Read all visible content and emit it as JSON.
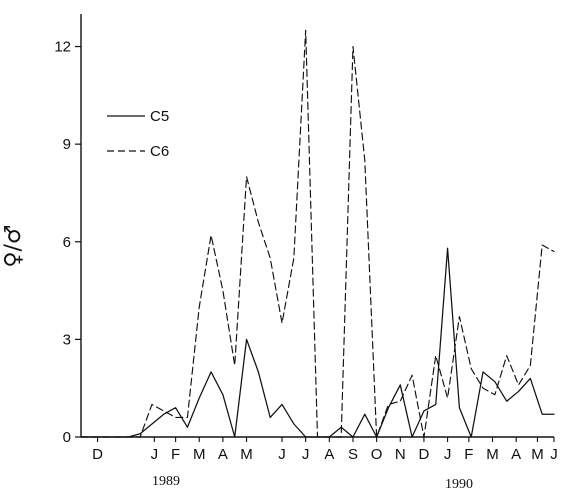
{
  "chart_data": {
    "type": "line",
    "title": "",
    "xlabel": "",
    "ylabel": "♀/♂",
    "ylim": [
      0,
      13
    ],
    "yticks": [
      "0",
      "3",
      "6",
      "9",
      "12"
    ],
    "month_labels": [
      "D",
      "J",
      "F",
      "M",
      "A",
      "M",
      "J",
      "J",
      "A",
      "S",
      "O",
      "N",
      "D",
      "J",
      "F",
      "M",
      "A",
      "M",
      "J"
    ],
    "year_labels": [
      "1989",
      "1990"
    ],
    "legend_position": "upper-left",
    "grid": false,
    "x": [
      0,
      1,
      2,
      3,
      4,
      5,
      6,
      7,
      8,
      9,
      10,
      11,
      12,
      13,
      14,
      15,
      16,
      17,
      18,
      19,
      20,
      21,
      22,
      23,
      24,
      25,
      26,
      27,
      28,
      29,
      30,
      31,
      32,
      33,
      34,
      35,
      36,
      37,
      38,
      39,
      40
    ],
    "series": [
      {
        "name": "C5",
        "style": "solid",
        "values": [
          0,
          0,
          0,
          0,
          0,
          0.1,
          0.4,
          0.7,
          0.9,
          0.3,
          1.2,
          2.0,
          1.3,
          0,
          3.0,
          2.0,
          0.6,
          1.0,
          0.4,
          0,
          0,
          0,
          0.3,
          0,
          0.7,
          0,
          0.9,
          1.6,
          0,
          0.8,
          1.0,
          5.8,
          0.9,
          0,
          2.0,
          1.7,
          1.1,
          1.4,
          1.8,
          0.7,
          0.7
        ],
        "color": "#111111"
      },
      {
        "name": "C6",
        "style": "dashed",
        "values": [
          0,
          0,
          0,
          0,
          0,
          0,
          1.0,
          0.8,
          0.6,
          0.6,
          4.0,
          6.2,
          4.5,
          2.2,
          8.0,
          6.6,
          5.5,
          3.5,
          5.5,
          12.5,
          0,
          0,
          0,
          12.0,
          8.5,
          0,
          1.0,
          1.1,
          1.9,
          0,
          2.5,
          1.2,
          3.7,
          2.1,
          1.5,
          1.3,
          2.5,
          1.6,
          2.2,
          5.9,
          5.7
        ],
        "color": "#111111"
      }
    ]
  }
}
